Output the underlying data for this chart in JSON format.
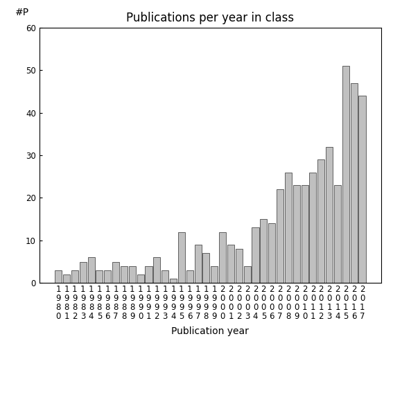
{
  "title": "Publications per year in class",
  "xlabel": "Publication year",
  "ylabel": "#P",
  "years": [
    "1980",
    "1981",
    "1982",
    "1983",
    "1984",
    "1985",
    "1986",
    "1987",
    "1988",
    "1989",
    "1990",
    "1991",
    "1992",
    "1993",
    "1994",
    "1995",
    "1996",
    "1997",
    "1998",
    "1999",
    "2000",
    "2001",
    "2002",
    "2003",
    "2004",
    "2005",
    "2006",
    "2007",
    "2008",
    "2009",
    "2010",
    "2011",
    "2012",
    "2013",
    "2014",
    "2015",
    "2016",
    "2017"
  ],
  "values": [
    3,
    2,
    3,
    5,
    6,
    3,
    3,
    5,
    4,
    4,
    2,
    4,
    6,
    3,
    1,
    12,
    3,
    9,
    7,
    4,
    12,
    9,
    8,
    4,
    13,
    15,
    14,
    22,
    26,
    23,
    23,
    26,
    29,
    32,
    23,
    51,
    47,
    44
  ],
  "bar_color": "#c0c0c0",
  "bar_edge_color": "#606060",
  "ylim": [
    0,
    60
  ],
  "yticks": [
    0,
    10,
    20,
    30,
    40,
    50,
    60
  ],
  "background_color": "#ffffff",
  "title_fontsize": 12,
  "label_fontsize": 10,
  "tick_fontsize": 8.5
}
